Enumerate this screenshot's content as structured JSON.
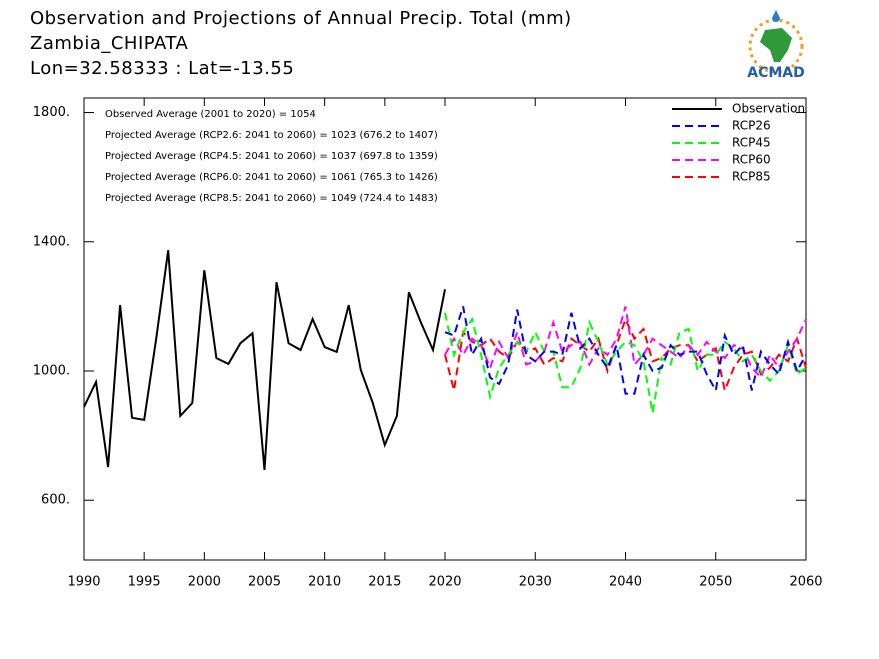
{
  "chart_data": {
    "type": "line",
    "title": "Observation and Projections of Annual Precip. Total (mm)",
    "subtitle": "Zambia_CHIPATA",
    "location": "Lon=32.58333 : Lat=-13.55",
    "logo_text": "ACMAD",
    "annotations": [
      "Observed Average (2001 to 2020) = 1054",
      "Projected Average (RCP2.6: 2041 to 2060) = 1023 (676.2 to 1407)",
      "Projected Average (RCP4.5: 2041 to 2060) = 1037 (697.8 to 1359)",
      "Projected Average (RCP6.0: 2041 to 2060) = 1061 (765.3 to 1426)",
      "Projected Average (RCP8.5: 2041 to 2060) = 1049 (724.4 to 1483)"
    ],
    "xlim": [
      1990,
      2060
    ],
    "xticks": [
      1990,
      1995,
      2000,
      2005,
      2010,
      2015,
      2020,
      2030,
      2040,
      2050,
      2060
    ],
    "ylim": [
      415,
      1845
    ],
    "yticks": [
      {
        "value": 600,
        "label": "600."
      },
      {
        "value": 1000,
        "label": "1000."
      },
      {
        "value": 1400,
        "label": "1400."
      },
      {
        "value": 1800,
        "label": "1800."
      }
    ],
    "legend": "top-right",
    "series": [
      {
        "name": "Observation",
        "color": "#000000",
        "dash": false,
        "x": [
          1990,
          1991,
          1992,
          1993,
          1994,
          1995,
          1996,
          1997,
          1998,
          1999,
          2000,
          2001,
          2002,
          2003,
          2004,
          2005,
          2006,
          2007,
          2008,
          2009,
          2010,
          2011,
          2012,
          2013,
          2014,
          2015,
          2016,
          2017,
          2018,
          2019,
          2020
        ],
        "values": [
          889,
          966,
          703,
          1204,
          855,
          849,
          1100,
          1374,
          861,
          901,
          1312,
          1040,
          1022,
          1086,
          1117,
          694,
          1275,
          1086,
          1065,
          1161,
          1074,
          1059,
          1204,
          1003,
          901,
          771,
          861,
          1244,
          1150,
          1065,
          1253
        ]
      },
      {
        "name": "RCP26",
        "color": "#0000ff",
        "dash": true,
        "x": [
          2020,
          2021,
          2022,
          2023,
          2024,
          2025,
          2026,
          2027,
          2028,
          2029,
          2030,
          2031,
          2032,
          2033,
          2034,
          2035,
          2036,
          2037,
          2038,
          2039,
          2040,
          2041,
          2042,
          2043,
          2044,
          2045,
          2046,
          2047,
          2048,
          2049,
          2050,
          2051,
          2052,
          2053,
          2054,
          2055,
          2056,
          2057,
          2058,
          2059,
          2060
        ],
        "values": [
          1120,
          1110,
          1200,
          1050,
          1100,
          980,
          960,
          1020,
          1190,
          1050,
          1030,
          1060,
          1060,
          1050,
          1180,
          1070,
          1100,
          1050,
          1010,
          1080,
          930,
          930,
          1050,
          1000,
          1010,
          1080,
          1050,
          1060,
          1060,
          990,
          940,
          1110,
          1050,
          1080,
          940,
          1060,
          1020,
          990,
          1090,
          1000,
          1050
        ]
      },
      {
        "name": "RCP45",
        "color": "#00ff00",
        "dash": true,
        "x": [
          2020,
          2021,
          2022,
          2023,
          2024,
          2025,
          2026,
          2027,
          2028,
          2029,
          2030,
          2031,
          2032,
          2033,
          2034,
          2035,
          2036,
          2037,
          2038,
          2039,
          2040,
          2041,
          2042,
          2043,
          2044,
          2045,
          2046,
          2047,
          2048,
          2049,
          2050,
          2051,
          2052,
          2053,
          2054,
          2055,
          2056,
          2057,
          2058,
          2059,
          2060
        ],
        "values": [
          1180,
          1050,
          1120,
          1160,
          1050,
          920,
          1010,
          1050,
          1090,
          1060,
          1120,
          1060,
          1060,
          950,
          950,
          1010,
          1150,
          1090,
          1020,
          1060,
          1090,
          1080,
          1030,
          870,
          1040,
          1020,
          1120,
          1130,
          1000,
          1050,
          1050,
          1090,
          1070,
          1030,
          1050,
          1000,
          970,
          1000,
          1080,
          990,
          1010
        ]
      },
      {
        "name": "RCP60",
        "color": "#ff00ff",
        "dash": true,
        "x": [
          2020,
          2021,
          2022,
          2023,
          2024,
          2025,
          2026,
          2027,
          2028,
          2029,
          2030,
          2031,
          2032,
          2033,
          2034,
          2035,
          2036,
          2037,
          2038,
          2039,
          2040,
          2041,
          2042,
          2043,
          2044,
          2045,
          2046,
          2047,
          2048,
          2049,
          2050,
          2051,
          2052,
          2053,
          2054,
          2055,
          2056,
          2057,
          2058,
          2059,
          2060
        ],
        "values": [
          1050,
          1100,
          1050,
          1100,
          1080,
          1010,
          1090,
          1040,
          1120,
          1020,
          1030,
          1060,
          1150,
          1060,
          1080,
          1090,
          1020,
          1070,
          1050,
          1100,
          1200,
          1020,
          1050,
          1100,
          1080,
          1060,
          1040,
          1080,
          1050,
          1090,
          1060,
          1040,
          1080,
          1070,
          1010,
          980,
          1050,
          1010,
          1060,
          1100,
          1160
        ]
      },
      {
        "name": "RCP85",
        "color": "#ff0000",
        "dash": true,
        "x": [
          2020,
          2021,
          2022,
          2023,
          2024,
          2025,
          2026,
          2027,
          2028,
          2029,
          2030,
          2031,
          2032,
          2033,
          2034,
          2035,
          2036,
          2037,
          2038,
          2039,
          2040,
          2041,
          2042,
          2043,
          2044,
          2045,
          2046,
          2047,
          2048,
          2049,
          2050,
          2051,
          2052,
          2053,
          2054,
          2055,
          2056,
          2057,
          2058,
          2059,
          2060
        ],
        "values": [
          1050,
          940,
          1120,
          1090,
          1080,
          1100,
          1060,
          1040,
          1090,
          1060,
          1070,
          1020,
          1040,
          1030,
          1100,
          1080,
          1060,
          1100,
          1000,
          1080,
          1160,
          1100,
          1130,
          1030,
          1040,
          1070,
          1080,
          1080,
          1030,
          1050,
          1070,
          940,
          1010,
          1050,
          1060,
          990,
          1010,
          1050,
          1030,
          1100,
          1010
        ]
      }
    ]
  }
}
